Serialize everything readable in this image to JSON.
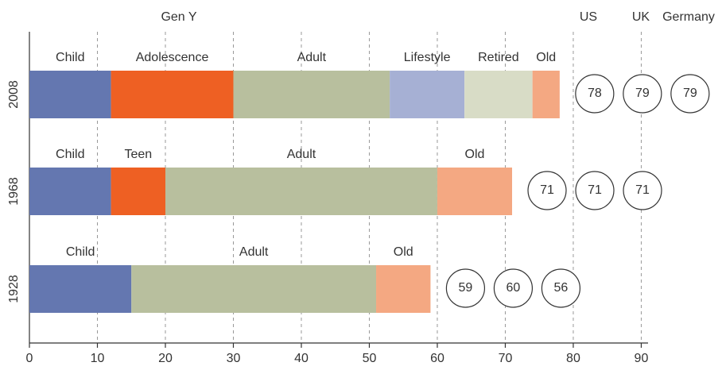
{
  "chart_data": {
    "type": "bar",
    "orientation": "horizontal",
    "stacked": true,
    "annotation": "Gen Y",
    "columns": [
      "US",
      "UK",
      "Germany"
    ],
    "xlim": [
      0,
      91
    ],
    "xticks": [
      0,
      10,
      20,
      30,
      40,
      50,
      60,
      70,
      80,
      90
    ],
    "grid": true,
    "rows": [
      {
        "label": "2008",
        "segments": [
          {
            "name": "Child",
            "value": 12,
            "color": "#6477b0"
          },
          {
            "name": "Adolescence",
            "value": 18,
            "color": "#ee6023"
          },
          {
            "name": "Adult",
            "value": 23,
            "color": "#b8bf9e"
          },
          {
            "name": "Lifestyle",
            "value": 11,
            "color": "#a6b0d4"
          },
          {
            "name": "Retired",
            "value": 10,
            "color": "#d8dcc6"
          },
          {
            "name": "Old",
            "value": 4,
            "color": "#f4a882"
          }
        ],
        "life_expectancy": [
          78,
          79,
          79
        ]
      },
      {
        "label": "1968",
        "segments": [
          {
            "name": "Child",
            "value": 12,
            "color": "#6477b0"
          },
          {
            "name": "Teen",
            "value": 8,
            "color": "#ee6023"
          },
          {
            "name": "Adult",
            "value": 40,
            "color": "#b8bf9e"
          },
          {
            "name": "Old",
            "value": 11,
            "color": "#f4a882"
          }
        ],
        "life_expectancy": [
          71,
          71,
          71
        ]
      },
      {
        "label": "1928",
        "segments": [
          {
            "name": "Child",
            "value": 15,
            "color": "#6477b0"
          },
          {
            "name": "Adult",
            "value": 36,
            "color": "#b8bf9e"
          },
          {
            "name": "Old",
            "value": 8,
            "color": "#f4a882"
          }
        ],
        "life_expectancy": [
          59,
          60,
          56
        ]
      }
    ]
  }
}
